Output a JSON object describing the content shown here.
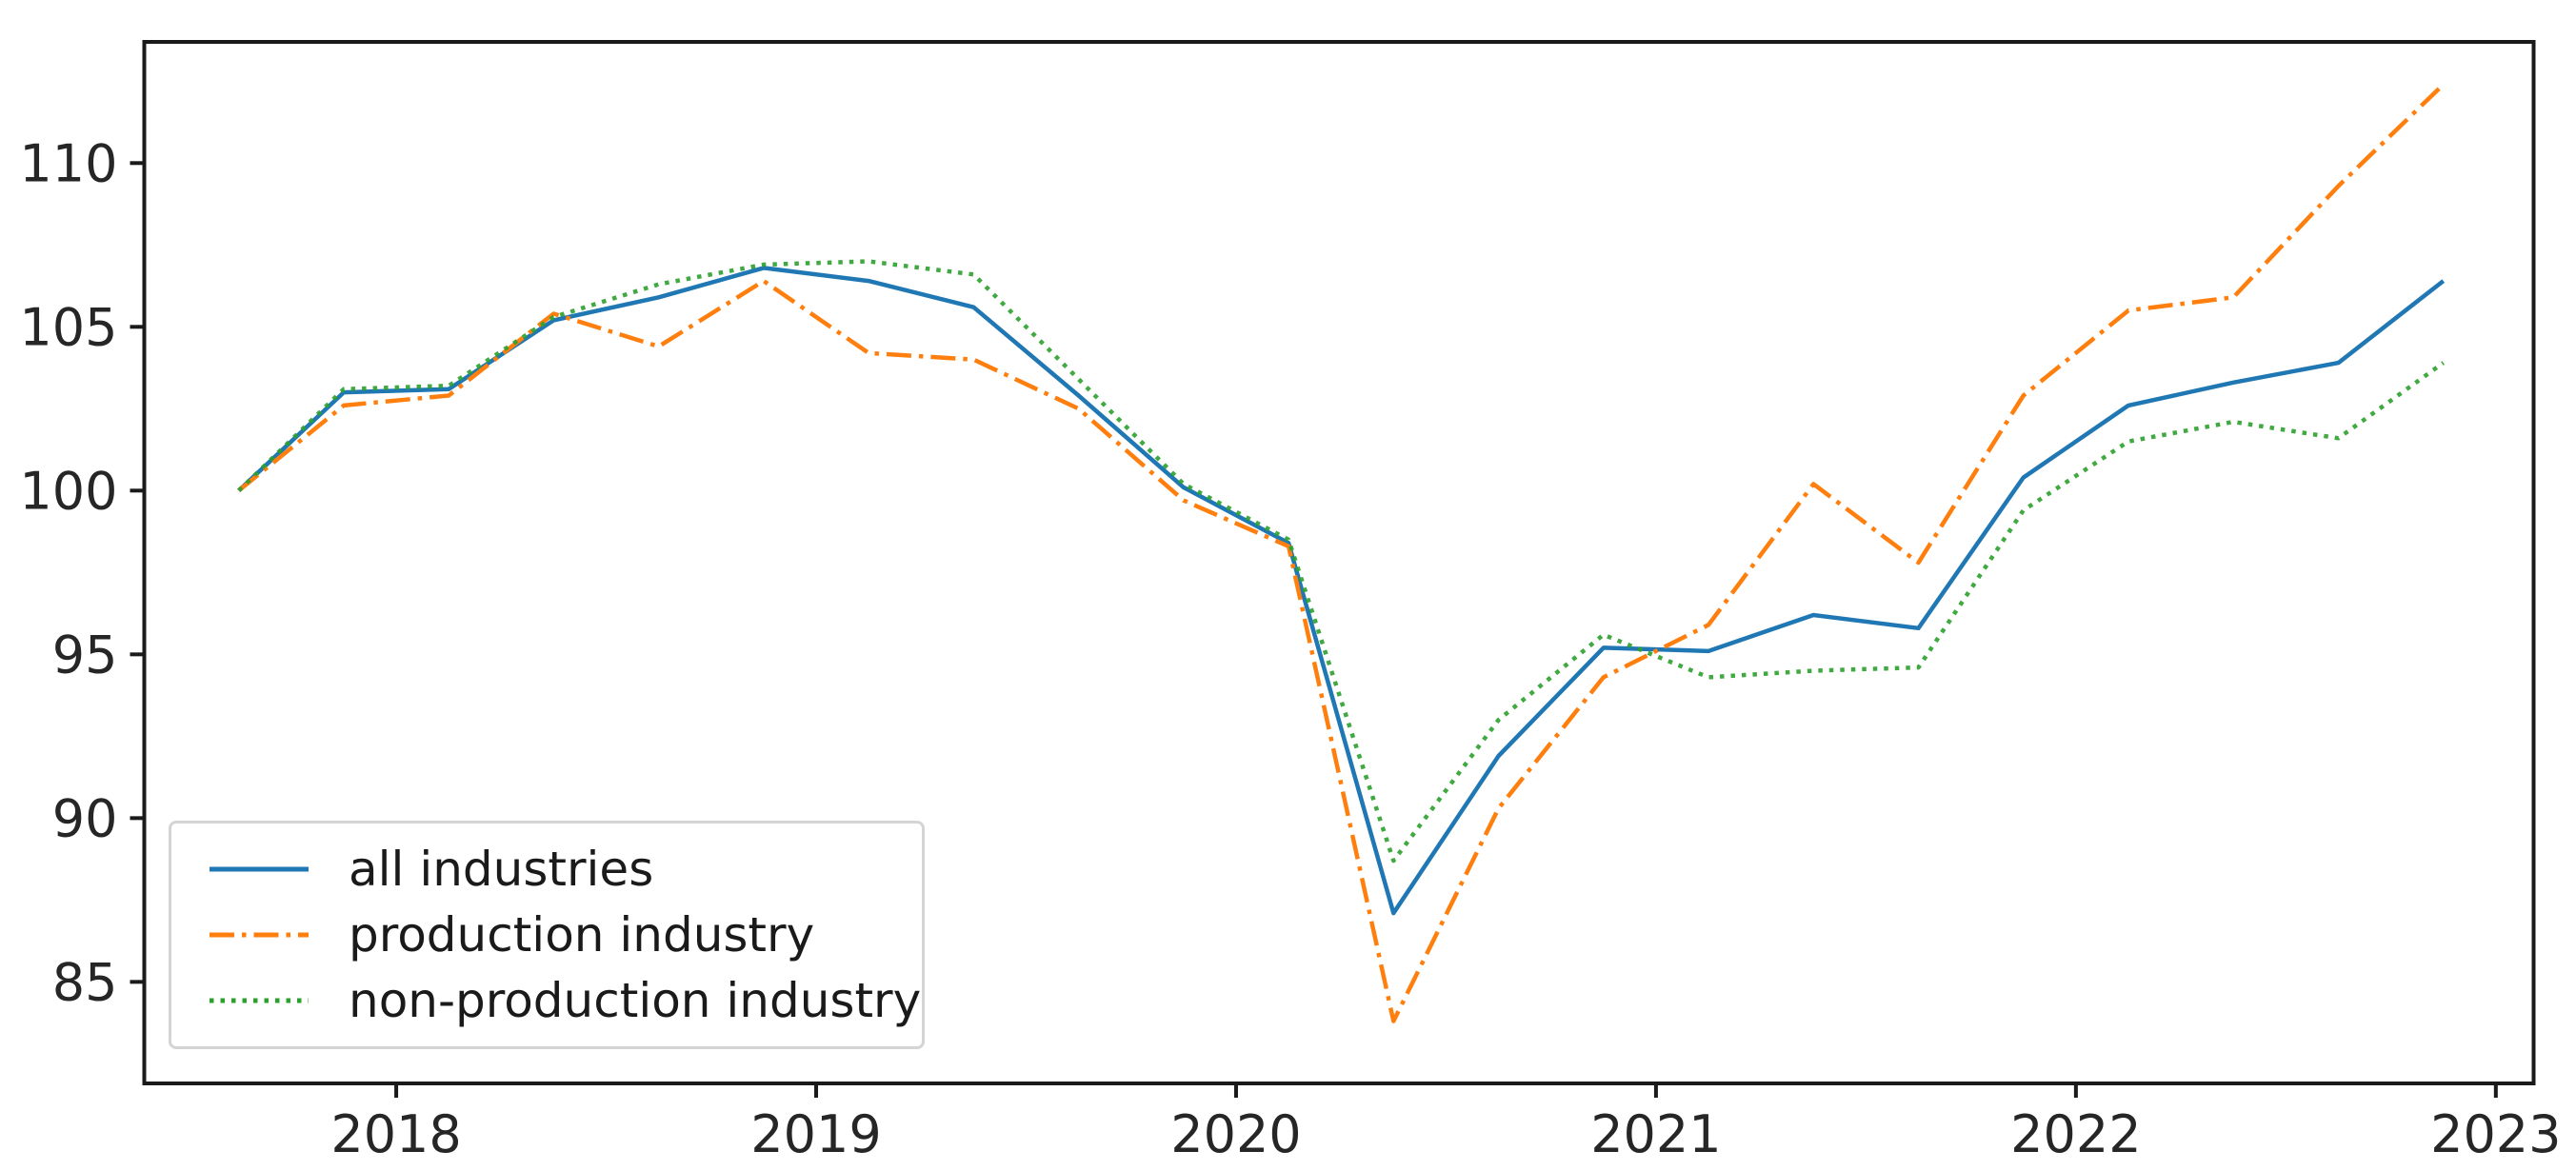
{
  "chart_data": {
    "type": "line",
    "title": "",
    "xlabel": "",
    "ylabel": "",
    "grid": false,
    "legend_position": "lower left",
    "xlim": [
      2017.4,
      2023.09
    ],
    "ylim": [
      81.9,
      113.7
    ],
    "x_ticks": {
      "values": [
        2018,
        2019,
        2020,
        2021,
        2022,
        2023
      ],
      "labels": [
        "2018",
        "2019",
        "2020",
        "2021",
        "2022",
        "2023"
      ]
    },
    "y_ticks": {
      "values": [
        85,
        90,
        95,
        100,
        105,
        110
      ],
      "labels": [
        "85",
        "90",
        "95",
        "100",
        "105",
        "110"
      ]
    },
    "categories": [
      "2017Q3",
      "2017Q4",
      "2018Q1",
      "2018Q2",
      "2018Q3",
      "2018Q4",
      "2019Q1",
      "2019Q2",
      "2019Q3",
      "2019Q4",
      "2020Q1",
      "2020Q2",
      "2020Q3",
      "2020Q4",
      "2021Q1",
      "2021Q2",
      "2021Q3",
      "2021Q4",
      "2022Q1",
      "2022Q2",
      "2022Q3",
      "2022Q4"
    ],
    "x": [
      2017.625,
      2017.875,
      2018.125,
      2018.375,
      2018.625,
      2018.875,
      2019.125,
      2019.375,
      2019.625,
      2019.875,
      2020.125,
      2020.375,
      2020.625,
      2020.875,
      2021.125,
      2021.375,
      2021.625,
      2021.875,
      2022.125,
      2022.375,
      2022.625,
      2022.875
    ],
    "series": [
      {
        "name": "all industries",
        "color": "#1f77b4",
        "style": "solid",
        "values": [
          100.0,
          103.0,
          103.1,
          105.2,
          105.9,
          106.8,
          106.4,
          105.6,
          102.9,
          100.1,
          98.4,
          87.1,
          91.9,
          95.2,
          95.1,
          96.2,
          95.8,
          100.4,
          102.6,
          103.3,
          103.9,
          106.4
        ]
      },
      {
        "name": "production industry",
        "color": "#ff7f0e",
        "style": "dash-dot",
        "values": [
          100.0,
          102.6,
          102.9,
          105.4,
          104.4,
          106.4,
          104.2,
          104.0,
          102.5,
          99.7,
          98.3,
          83.8,
          90.3,
          94.3,
          95.9,
          100.2,
          97.8,
          102.9,
          105.5,
          105.9,
          109.3,
          112.4
        ]
      },
      {
        "name": "non-production industry",
        "color": "#2ca02c",
        "style": "dotted",
        "values": [
          100.0,
          103.1,
          103.2,
          105.3,
          106.3,
          106.9,
          107.0,
          106.6,
          103.4,
          100.2,
          98.5,
          88.7,
          93.0,
          95.6,
          94.3,
          94.5,
          94.6,
          99.4,
          101.5,
          102.1,
          101.6,
          103.9
        ]
      }
    ]
  },
  "legend": {
    "items": [
      "all industries",
      "production industry",
      "non-production industry"
    ]
  },
  "colors": {
    "background": "#ffffff",
    "spine": "#1a1a1a",
    "tick_label": "#262626",
    "legend_border": "#d4d4d4",
    "series_blue": "#1f77b4",
    "series_orange": "#ff7f0e",
    "series_green": "#2ca02c"
  }
}
